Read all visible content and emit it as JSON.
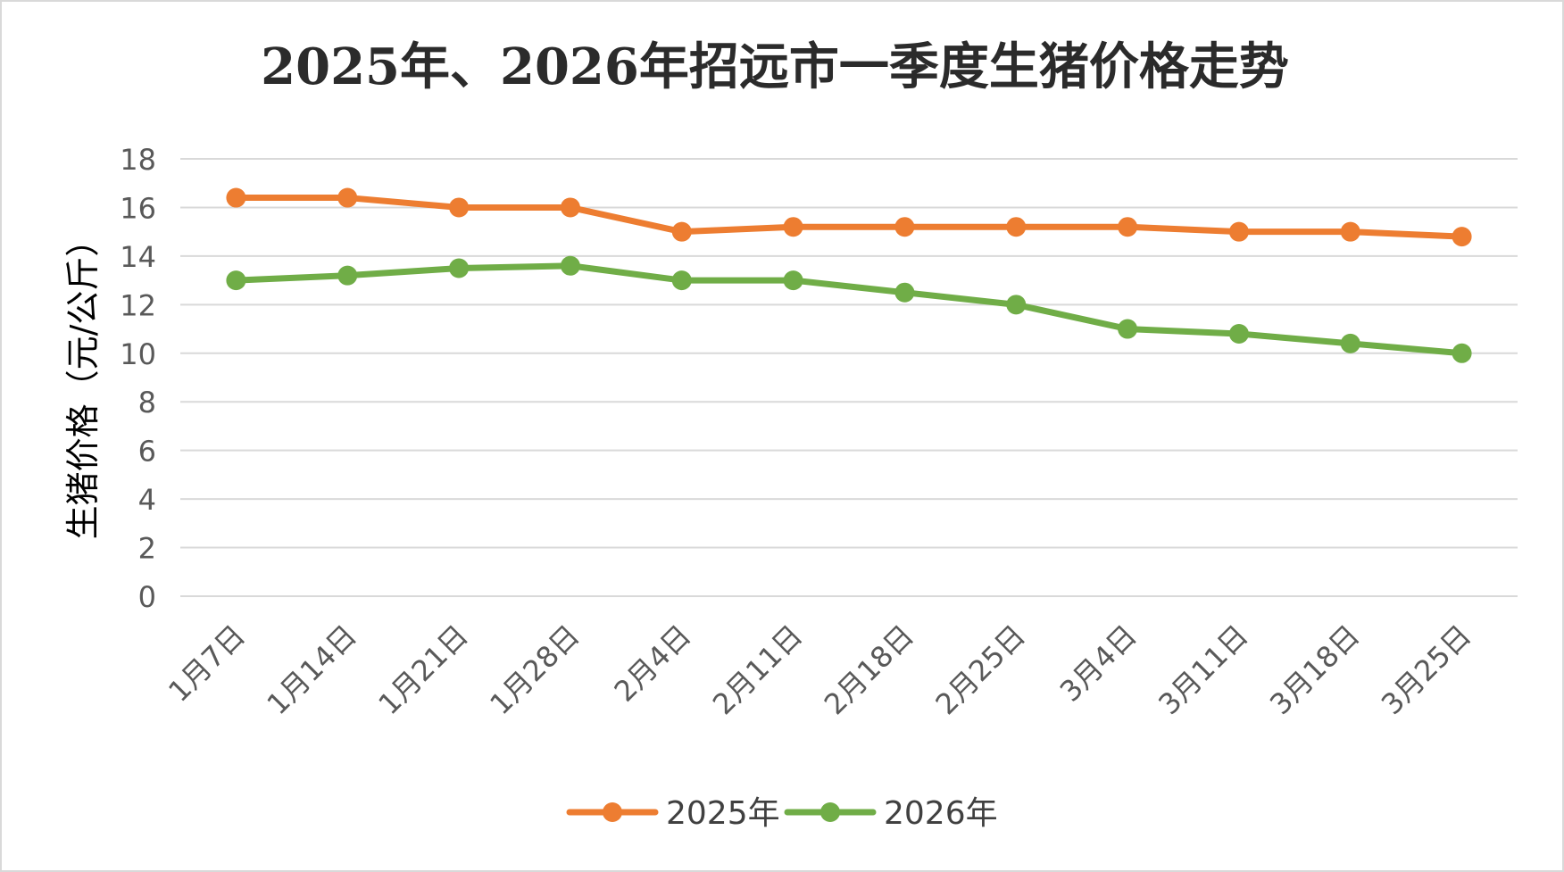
{
  "chart_data": {
    "type": "line",
    "title": "2025年、2026年招远市一季度生猪价格走势",
    "xlabel": "",
    "ylabel": "生猪价格（元/公斤）",
    "ylim": [
      0,
      18
    ],
    "yticks": [
      0,
      2,
      4,
      6,
      8,
      10,
      12,
      14,
      16,
      18
    ],
    "grid": true,
    "legend_position": "bottom",
    "categories": [
      "1月7日",
      "1月14日",
      "1月21日",
      "1月28日",
      "2月4日",
      "2月11日",
      "2月18日",
      "2月25日",
      "3月4日",
      "3月11日",
      "3月18日",
      "3月25日"
    ],
    "series": [
      {
        "name": "2025年",
        "color": "#ed7d31",
        "values": [
          16.4,
          16.4,
          16.0,
          16.0,
          15.0,
          15.2,
          15.2,
          15.2,
          15.2,
          15.0,
          15.0,
          14.8
        ]
      },
      {
        "name": "2026年",
        "color": "#70ad47",
        "values": [
          13.0,
          13.2,
          13.5,
          13.6,
          13.0,
          13.0,
          12.5,
          12.0,
          11.0,
          10.8,
          10.4,
          10.0
        ]
      }
    ],
    "colors": {
      "grid": "#d9d9d9",
      "border": "#d9d9d9"
    }
  }
}
